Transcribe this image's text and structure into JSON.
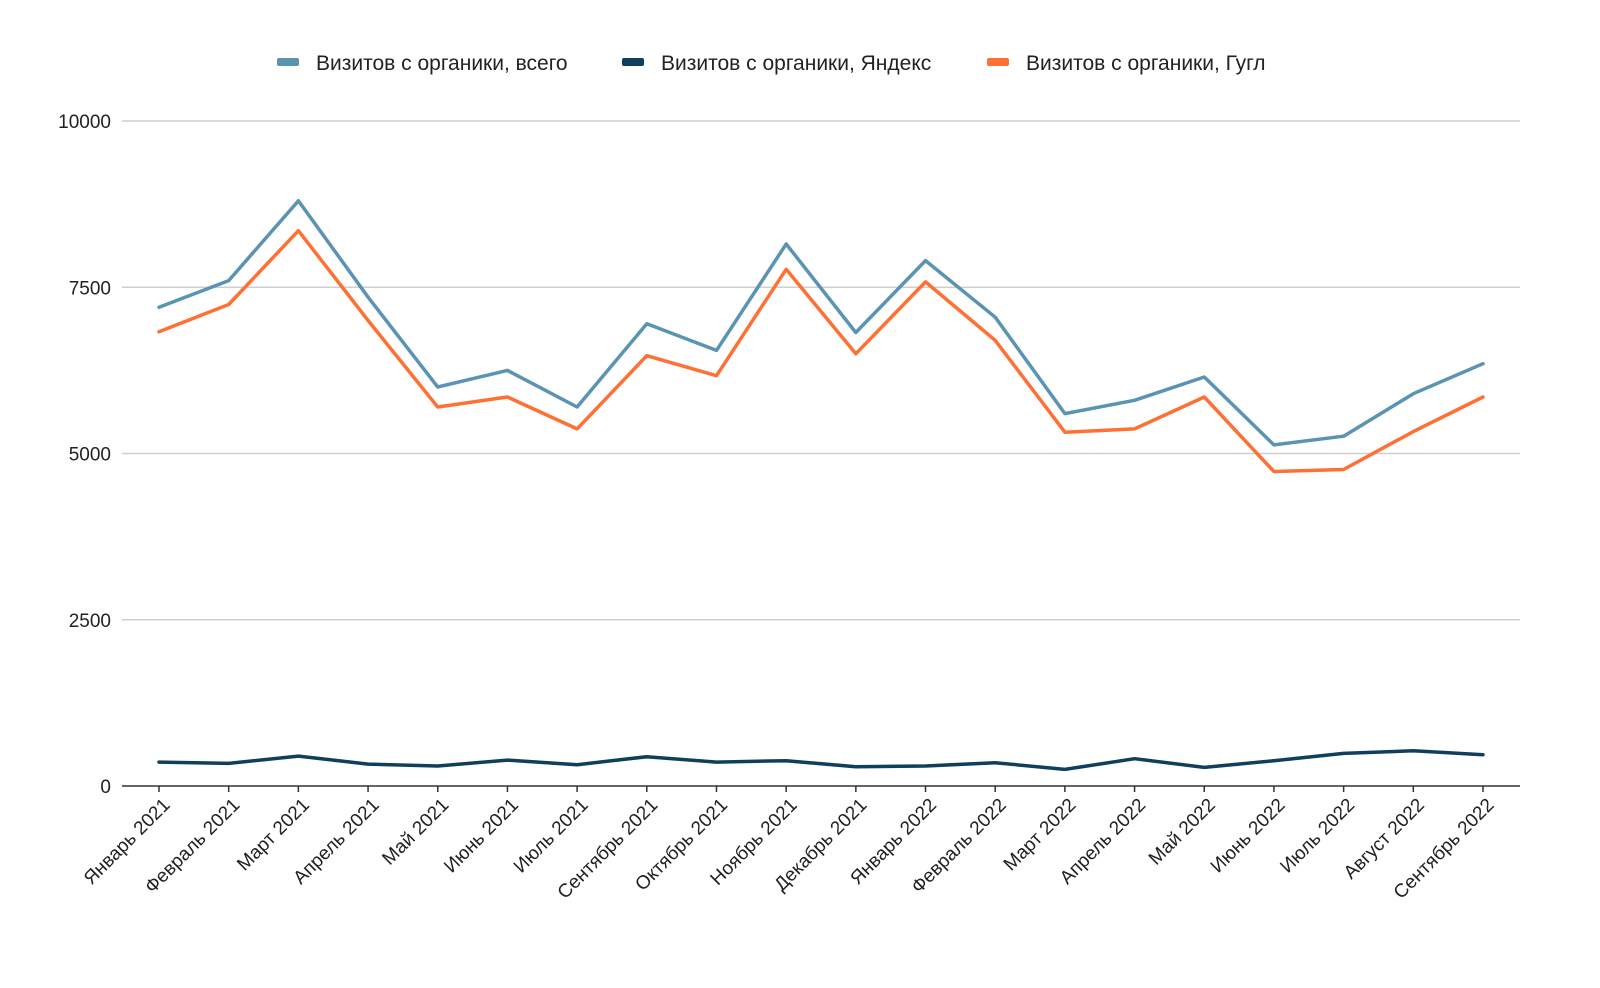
{
  "chart_data": {
    "type": "line",
    "title": "",
    "xlabel": "",
    "ylabel": "",
    "ylim": [
      0,
      10000
    ],
    "yticks": [
      0,
      2500,
      5000,
      7500,
      10000
    ],
    "grid": true,
    "legend_position": "top",
    "categories": [
      "Январь 2021",
      "Февраль 2021",
      "Март 2021",
      "Апрель 2021",
      "Май 2021",
      "Июнь 2021",
      "Июль 2021",
      "Сентябрь 2021",
      "Октябрь 2021",
      "Ноябрь 2021",
      "Декабрь 2021",
      "Январь 2022",
      "Февраль 2022",
      "Март 2022",
      "Апрель 2022",
      "Май 2022",
      "Июнь 2022",
      "Июль 2022",
      "Август 2022",
      "Сентябрь 2022"
    ],
    "series": [
      {
        "name": "Визитов с органики, всего",
        "color": "#5b93b3",
        "values": [
          7200,
          7600,
          8800,
          7350,
          6000,
          6250,
          5700,
          6950,
          6550,
          8150,
          6820,
          7900,
          7050,
          5600,
          5800,
          6150,
          5130,
          5260,
          5900,
          6350
        ]
      },
      {
        "name": "Визитов с органики, Яндекс",
        "color": "#0e3f5c",
        "values": [
          360,
          340,
          450,
          330,
          300,
          390,
          320,
          440,
          360,
          380,
          290,
          300,
          350,
          250,
          410,
          280,
          380,
          490,
          530,
          470
        ]
      },
      {
        "name": "Визитов с органики, Гугл",
        "color": "#ff7034",
        "values": [
          6830,
          7240,
          8350,
          7000,
          5700,
          5850,
          5370,
          6470,
          6170,
          7770,
          6500,
          7580,
          6700,
          5320,
          5370,
          5850,
          4730,
          4760,
          5330,
          5850
        ]
      }
    ]
  }
}
